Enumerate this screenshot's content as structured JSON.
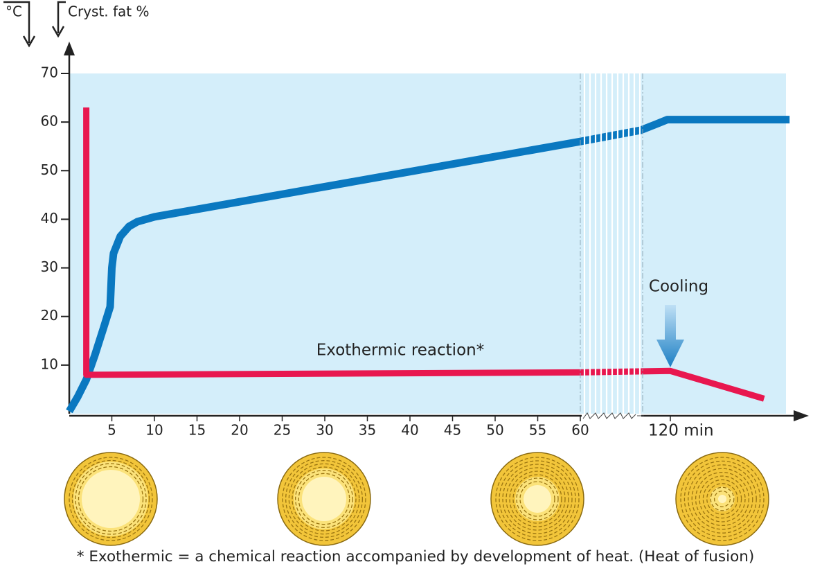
{
  "chart_data": {
    "type": "line",
    "ylabels": [
      "°C",
      "Cryst. fat %"
    ],
    "xlim": [
      0,
      135
    ],
    "ylim": [
      0,
      70
    ],
    "xbreak": [
      60,
      120
    ],
    "xticks": [
      5,
      10,
      15,
      20,
      25,
      30,
      35,
      40,
      45,
      50,
      55,
      60,
      {
        "value": 120,
        "label": "120 min"
      }
    ],
    "yticks": [
      10,
      20,
      30,
      40,
      50,
      60,
      70
    ],
    "series": [
      {
        "color": "#0a78c0",
        "x": [
          0,
          1,
          2,
          3,
          4,
          4.8,
          5,
          5.2,
          6,
          7,
          8,
          10,
          60,
          100,
          110,
          118,
          134
        ],
        "values": [
          0.5,
          3.5,
          7,
          12,
          17.5,
          22,
          30,
          33,
          36.5,
          38.5,
          39.5,
          40.5,
          56,
          58.3,
          59.5,
          60.5,
          60.5
        ]
      },
      {
        "color": "#e8174f",
        "x": [
          2,
          2,
          60,
          120,
          131
        ],
        "values": [
          63,
          8,
          8.5,
          8.8,
          3.1
        ]
      }
    ],
    "annotations": [
      "Exothermic reaction*",
      "Cooling"
    ],
    "footnote": "* Exothermic = a chemical reaction accompanied by development of heat. (Heat of fusion)"
  }
}
